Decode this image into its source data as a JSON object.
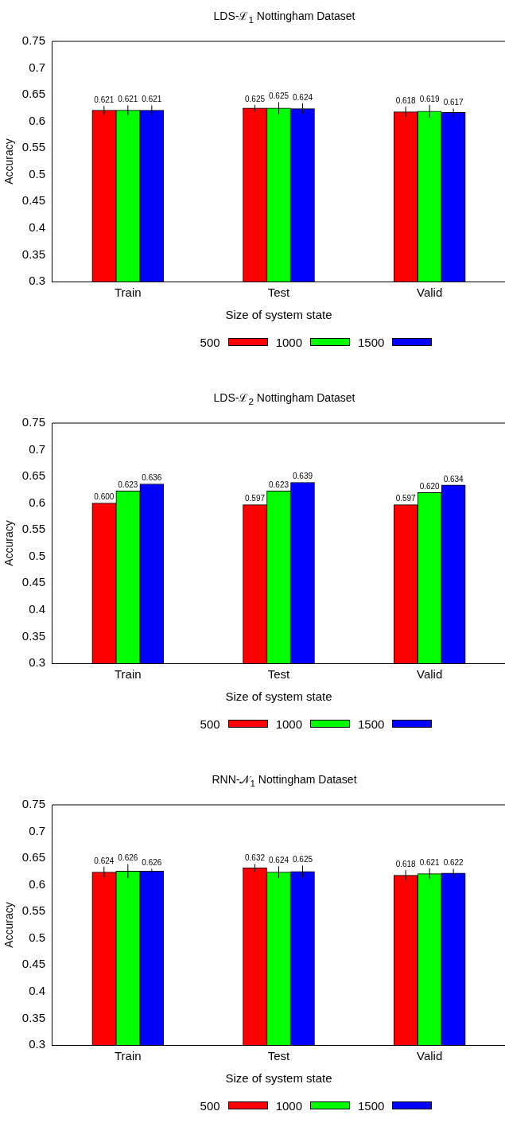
{
  "chart_data": [
    {
      "type": "bar",
      "title": "LDS-ℒ$_{1}$ Nottingham Dataset",
      "xlabel": "Size of system state",
      "ylabel": "Accuracy",
      "categories": [
        "Train",
        "Test",
        "Valid"
      ],
      "series": [
        {
          "name": "500",
          "color": "#ff0000",
          "values": [
            0.621,
            0.625,
            0.618
          ],
          "errors": [
            0.008,
            0.006,
            0.01
          ],
          "value_labels": [
            "0.621",
            "0.625",
            "0.618"
          ]
        },
        {
          "name": "1000",
          "color": "#00ff00",
          "values": [
            0.621,
            0.625,
            0.619
          ],
          "errors": [
            0.009,
            0.011,
            0.012
          ],
          "value_labels": [
            "0.621",
            "0.625",
            "0.619"
          ]
        },
        {
          "name": "1500",
          "color": "#0000ff",
          "values": [
            0.621,
            0.624,
            0.617
          ],
          "errors": [
            0.009,
            0.01,
            0.007
          ],
          "value_labels": [
            "0.621",
            "0.624",
            "0.617"
          ]
        }
      ],
      "ylim": [
        0.3,
        0.75
      ],
      "yticks": [
        0.3,
        0.35,
        0.4,
        0.45,
        0.5,
        0.55,
        0.6,
        0.65,
        0.7,
        0.75
      ],
      "legend": "bottom",
      "grid": false
    },
    {
      "type": "bar",
      "title": "LDS-ℒ$_{2}$ Nottingham Dataset",
      "xlabel": "Size of system state",
      "ylabel": "Accuracy",
      "categories": [
        "Train",
        "Test",
        "Valid"
      ],
      "series": [
        {
          "name": "500",
          "color": "#ff0000",
          "values": [
            0.6,
            0.597,
            0.597
          ],
          "value_labels": [
            "0.600",
            "0.597",
            "0.597"
          ]
        },
        {
          "name": "1000",
          "color": "#00ff00",
          "values": [
            0.623,
            0.623,
            0.62
          ],
          "value_labels": [
            "0.623",
            "0.623",
            "0.620"
          ]
        },
        {
          "name": "1500",
          "color": "#0000ff",
          "values": [
            0.636,
            0.639,
            0.634
          ],
          "value_labels": [
            "0.636",
            "0.639",
            "0.634"
          ]
        }
      ],
      "ylim": [
        0.3,
        0.75
      ],
      "yticks": [
        0.3,
        0.35,
        0.4,
        0.45,
        0.5,
        0.55,
        0.6,
        0.65,
        0.7,
        0.75
      ],
      "legend": "bottom",
      "grid": false
    },
    {
      "type": "bar",
      "title": "RNN-𝒩$_{1}$ Nottingham Dataset",
      "xlabel": "Size of system state",
      "ylabel": "Accuracy",
      "categories": [
        "Train",
        "Test",
        "Valid"
      ],
      "series": [
        {
          "name": "500",
          "color": "#ff0000",
          "values": [
            0.624,
            0.632,
            0.618
          ],
          "errors": [
            0.01,
            0.007,
            0.01
          ],
          "value_labels": [
            "0.624",
            "0.632",
            "0.618"
          ]
        },
        {
          "name": "1000",
          "color": "#00ff00",
          "values": [
            0.626,
            0.624,
            0.621
          ],
          "errors": [
            0.013,
            0.011,
            0.01
          ],
          "value_labels": [
            "0.626",
            "0.624",
            "0.621"
          ]
        },
        {
          "name": "1500",
          "color": "#0000ff",
          "values": [
            0.626,
            0.625,
            0.622
          ],
          "errors": [
            0.004,
            0.011,
            0.008
          ],
          "value_labels": [
            "0.626",
            "0.625",
            "0.622"
          ]
        }
      ],
      "ylim": [
        0.3,
        0.75
      ],
      "yticks": [
        0.3,
        0.35,
        0.4,
        0.45,
        0.5,
        0.55,
        0.6,
        0.65,
        0.7,
        0.75
      ],
      "legend": "bottom",
      "grid": false
    }
  ]
}
